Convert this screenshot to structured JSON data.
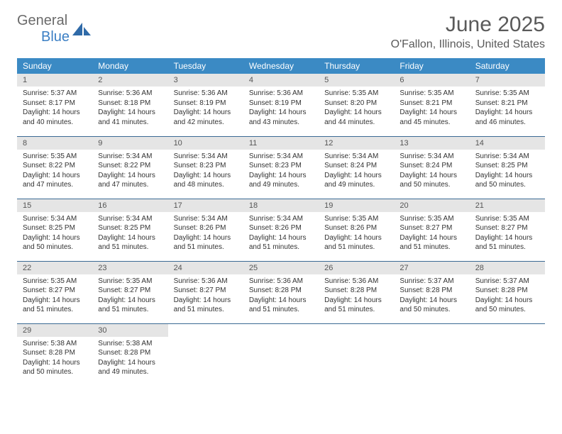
{
  "logo": {
    "text1": "General",
    "text2": "Blue",
    "icon_color": "#2f6aa8"
  },
  "title": "June 2025",
  "location": "O'Fallon, Illinois, United States",
  "colors": {
    "header_bg": "#3b8ac4",
    "header_text": "#ffffff",
    "daynum_bg": "#e5e5e5",
    "row_border": "#3b6a94",
    "body_text": "#333333",
    "title_text": "#5a5a5a"
  },
  "day_headers": [
    "Sunday",
    "Monday",
    "Tuesday",
    "Wednesday",
    "Thursday",
    "Friday",
    "Saturday"
  ],
  "weeks": [
    [
      {
        "n": "1",
        "sunrise": "Sunrise: 5:37 AM",
        "sunset": "Sunset: 8:17 PM",
        "daylight": "Daylight: 14 hours and 40 minutes."
      },
      {
        "n": "2",
        "sunrise": "Sunrise: 5:36 AM",
        "sunset": "Sunset: 8:18 PM",
        "daylight": "Daylight: 14 hours and 41 minutes."
      },
      {
        "n": "3",
        "sunrise": "Sunrise: 5:36 AM",
        "sunset": "Sunset: 8:19 PM",
        "daylight": "Daylight: 14 hours and 42 minutes."
      },
      {
        "n": "4",
        "sunrise": "Sunrise: 5:36 AM",
        "sunset": "Sunset: 8:19 PM",
        "daylight": "Daylight: 14 hours and 43 minutes."
      },
      {
        "n": "5",
        "sunrise": "Sunrise: 5:35 AM",
        "sunset": "Sunset: 8:20 PM",
        "daylight": "Daylight: 14 hours and 44 minutes."
      },
      {
        "n": "6",
        "sunrise": "Sunrise: 5:35 AM",
        "sunset": "Sunset: 8:21 PM",
        "daylight": "Daylight: 14 hours and 45 minutes."
      },
      {
        "n": "7",
        "sunrise": "Sunrise: 5:35 AM",
        "sunset": "Sunset: 8:21 PM",
        "daylight": "Daylight: 14 hours and 46 minutes."
      }
    ],
    [
      {
        "n": "8",
        "sunrise": "Sunrise: 5:35 AM",
        "sunset": "Sunset: 8:22 PM",
        "daylight": "Daylight: 14 hours and 47 minutes."
      },
      {
        "n": "9",
        "sunrise": "Sunrise: 5:34 AM",
        "sunset": "Sunset: 8:22 PM",
        "daylight": "Daylight: 14 hours and 47 minutes."
      },
      {
        "n": "10",
        "sunrise": "Sunrise: 5:34 AM",
        "sunset": "Sunset: 8:23 PM",
        "daylight": "Daylight: 14 hours and 48 minutes."
      },
      {
        "n": "11",
        "sunrise": "Sunrise: 5:34 AM",
        "sunset": "Sunset: 8:23 PM",
        "daylight": "Daylight: 14 hours and 49 minutes."
      },
      {
        "n": "12",
        "sunrise": "Sunrise: 5:34 AM",
        "sunset": "Sunset: 8:24 PM",
        "daylight": "Daylight: 14 hours and 49 minutes."
      },
      {
        "n": "13",
        "sunrise": "Sunrise: 5:34 AM",
        "sunset": "Sunset: 8:24 PM",
        "daylight": "Daylight: 14 hours and 50 minutes."
      },
      {
        "n": "14",
        "sunrise": "Sunrise: 5:34 AM",
        "sunset": "Sunset: 8:25 PM",
        "daylight": "Daylight: 14 hours and 50 minutes."
      }
    ],
    [
      {
        "n": "15",
        "sunrise": "Sunrise: 5:34 AM",
        "sunset": "Sunset: 8:25 PM",
        "daylight": "Daylight: 14 hours and 50 minutes."
      },
      {
        "n": "16",
        "sunrise": "Sunrise: 5:34 AM",
        "sunset": "Sunset: 8:25 PM",
        "daylight": "Daylight: 14 hours and 51 minutes."
      },
      {
        "n": "17",
        "sunrise": "Sunrise: 5:34 AM",
        "sunset": "Sunset: 8:26 PM",
        "daylight": "Daylight: 14 hours and 51 minutes."
      },
      {
        "n": "18",
        "sunrise": "Sunrise: 5:34 AM",
        "sunset": "Sunset: 8:26 PM",
        "daylight": "Daylight: 14 hours and 51 minutes."
      },
      {
        "n": "19",
        "sunrise": "Sunrise: 5:35 AM",
        "sunset": "Sunset: 8:26 PM",
        "daylight": "Daylight: 14 hours and 51 minutes."
      },
      {
        "n": "20",
        "sunrise": "Sunrise: 5:35 AM",
        "sunset": "Sunset: 8:27 PM",
        "daylight": "Daylight: 14 hours and 51 minutes."
      },
      {
        "n": "21",
        "sunrise": "Sunrise: 5:35 AM",
        "sunset": "Sunset: 8:27 PM",
        "daylight": "Daylight: 14 hours and 51 minutes."
      }
    ],
    [
      {
        "n": "22",
        "sunrise": "Sunrise: 5:35 AM",
        "sunset": "Sunset: 8:27 PM",
        "daylight": "Daylight: 14 hours and 51 minutes."
      },
      {
        "n": "23",
        "sunrise": "Sunrise: 5:35 AM",
        "sunset": "Sunset: 8:27 PM",
        "daylight": "Daylight: 14 hours and 51 minutes."
      },
      {
        "n": "24",
        "sunrise": "Sunrise: 5:36 AM",
        "sunset": "Sunset: 8:27 PM",
        "daylight": "Daylight: 14 hours and 51 minutes."
      },
      {
        "n": "25",
        "sunrise": "Sunrise: 5:36 AM",
        "sunset": "Sunset: 8:28 PM",
        "daylight": "Daylight: 14 hours and 51 minutes."
      },
      {
        "n": "26",
        "sunrise": "Sunrise: 5:36 AM",
        "sunset": "Sunset: 8:28 PM",
        "daylight": "Daylight: 14 hours and 51 minutes."
      },
      {
        "n": "27",
        "sunrise": "Sunrise: 5:37 AM",
        "sunset": "Sunset: 8:28 PM",
        "daylight": "Daylight: 14 hours and 50 minutes."
      },
      {
        "n": "28",
        "sunrise": "Sunrise: 5:37 AM",
        "sunset": "Sunset: 8:28 PM",
        "daylight": "Daylight: 14 hours and 50 minutes."
      }
    ],
    [
      {
        "n": "29",
        "sunrise": "Sunrise: 5:38 AM",
        "sunset": "Sunset: 8:28 PM",
        "daylight": "Daylight: 14 hours and 50 minutes."
      },
      {
        "n": "30",
        "sunrise": "Sunrise: 5:38 AM",
        "sunset": "Sunset: 8:28 PM",
        "daylight": "Daylight: 14 hours and 49 minutes."
      },
      null,
      null,
      null,
      null,
      null
    ]
  ]
}
